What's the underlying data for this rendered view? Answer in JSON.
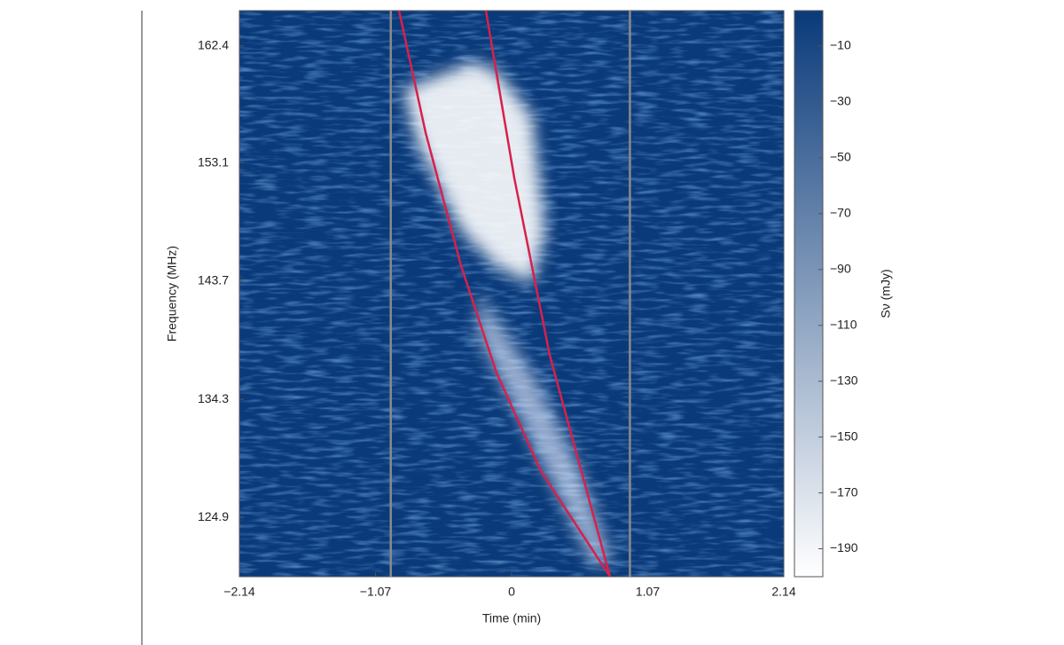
{
  "chart_data": {
    "type": "dynamic_spectrum",
    "xlabel": "Time (min)",
    "ylabel": "Frequency (MHz)",
    "colorbar_label": "Sν (mJy)",
    "xlim": [
      -2.14,
      2.14
    ],
    "xticks": [
      {
        "value": -2.14,
        "label": "−2.14"
      },
      {
        "value": -1.07,
        "label": "−1.07"
      },
      0,
      1.07,
      2.14
    ],
    "ylim": [
      120.2,
      165.2
    ],
    "yticks": [
      124.9,
      134.3,
      143.7,
      153.1,
      162.4
    ],
    "clim": [
      -200,
      2.7
    ],
    "cticks": [
      {
        "value": -10,
        "label": "−10"
      },
      {
        "value": -30,
        "label": "−30"
      },
      {
        "value": -50,
        "label": "−50"
      },
      {
        "value": -70,
        "label": "−70"
      },
      {
        "value": -90,
        "label": "−90"
      },
      {
        "value": -110,
        "label": "−110"
      },
      {
        "value": -130,
        "label": "−130"
      },
      {
        "value": -150,
        "label": "−150"
      },
      {
        "value": -170,
        "label": "−170"
      },
      {
        "value": -190,
        "label": "−190"
      }
    ],
    "colormap": [
      "#0a3a7a",
      "#ffffff"
    ],
    "vlines": [
      -0.95,
      0.93
    ],
    "vline_color": "#8a8a8a",
    "series": [
      {
        "color": "#d8204c",
        "x": [
          -0.885,
          -0.676,
          -0.397,
          -0.118,
          0.23,
          0.774
        ],
        "y": [
          165.2,
          155.5,
          144.9,
          136.4,
          128.6,
          120.2
        ]
      },
      {
        "color": "#d8204c",
        "x": [
          -0.202,
          0.021,
          0.3,
          0.774
        ],
        "y": [
          165.2,
          151.9,
          137.8,
          120.2
        ]
      }
    ]
  }
}
